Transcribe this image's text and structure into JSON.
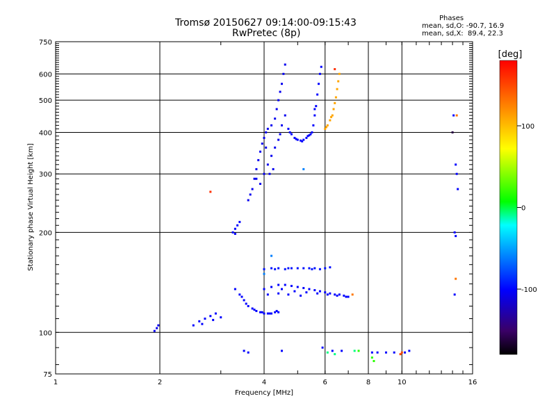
{
  "header": {
    "title_line1": "Tromsø 20150627 09:14:00-09:15:43",
    "title_line2": "RwPretec (8p)"
  },
  "phases": {
    "heading": "Phases",
    "line_o": "mean, sd,O: -90.7, 16.9",
    "line_x": "mean, sd,X:  89.4, 22.3"
  },
  "chart_data": {
    "type": "scatter",
    "xlabel": "Frequency [MHz]",
    "ylabel": "Stationary phase Virtual Height [km]",
    "xscale": "log",
    "yscale": "log",
    "xlim": [
      1,
      16
    ],
    "ylim": [
      75,
      750
    ],
    "xticks": [
      {
        "value": 1,
        "label": "1"
      },
      {
        "value": 2,
        "label": "2"
      },
      {
        "value": 4,
        "label": "4"
      },
      {
        "value": 6,
        "label": "6"
      },
      {
        "value": 8,
        "label": "8"
      },
      {
        "value": 10,
        "label": "10"
      },
      {
        "value": 16,
        "label": "16"
      }
    ],
    "yticks": [
      {
        "value": 75,
        "label": "75"
      },
      {
        "value": 100,
        "label": "100"
      },
      {
        "value": 200,
        "label": "200"
      },
      {
        "value": 300,
        "label": "300"
      },
      {
        "value": 400,
        "label": "400"
      },
      {
        "value": 500,
        "label": "500"
      },
      {
        "value": 600,
        "label": "600"
      },
      {
        "value": 750,
        "label": "750"
      }
    ],
    "grid_x": [
      2,
      4,
      6,
      8,
      10
    ],
    "grid_y": [
      100,
      200,
      300,
      400,
      500,
      600
    ],
    "colorbar": {
      "label": "[deg]",
      "range": [
        -180,
        180
      ],
      "ticks": [
        {
          "value": 100,
          "label": "100"
        },
        {
          "value": 0,
          "label": "0"
        },
        {
          "value": -100,
          "label": "-100"
        }
      ]
    },
    "clusters": [
      {
        "phase": -105,
        "points": [
          [
            1.93,
            101
          ],
          [
            1.96,
            103
          ],
          [
            1.98,
            105
          ]
        ]
      },
      {
        "phase": -100,
        "points": [
          [
            2.5,
            105
          ],
          [
            2.6,
            108
          ],
          [
            2.7,
            110
          ],
          [
            2.8,
            112
          ],
          [
            2.9,
            114
          ],
          [
            3.0,
            111
          ],
          [
            2.65,
            106
          ],
          [
            2.85,
            109
          ]
        ]
      },
      {
        "phase": -100,
        "points": [
          [
            3.25,
            200
          ],
          [
            3.3,
            205
          ],
          [
            3.35,
            210
          ],
          [
            3.3,
            198
          ],
          [
            3.4,
            215
          ]
        ]
      },
      {
        "phase": -105,
        "points": [
          [
            3.6,
            250
          ],
          [
            3.7,
            270
          ],
          [
            3.75,
            290
          ],
          [
            3.8,
            310
          ],
          [
            3.85,
            330
          ],
          [
            3.9,
            350
          ],
          [
            3.95,
            370
          ],
          [
            4.0,
            385
          ],
          [
            4.05,
            400
          ],
          [
            4.1,
            410
          ],
          [
            4.2,
            420
          ],
          [
            4.3,
            440
          ],
          [
            4.35,
            470
          ],
          [
            4.4,
            500
          ],
          [
            4.45,
            530
          ],
          [
            4.5,
            560
          ],
          [
            4.55,
            600
          ],
          [
            4.6,
            640
          ],
          [
            4.0,
            300
          ],
          [
            4.1,
            320
          ],
          [
            4.2,
            340
          ],
          [
            4.3,
            360
          ],
          [
            4.4,
            380
          ],
          [
            4.45,
            395
          ],
          [
            4.5,
            420
          ],
          [
            4.6,
            450
          ],
          [
            3.65,
            260
          ],
          [
            3.9,
            280
          ],
          [
            4.15,
            300
          ],
          [
            4.25,
            310
          ],
          [
            3.8,
            290
          ],
          [
            4.05,
            360
          ]
        ]
      },
      {
        "phase": -100,
        "points": [
          [
            4.7,
            410
          ],
          [
            4.8,
            395
          ],
          [
            4.9,
            385
          ],
          [
            5.0,
            380
          ],
          [
            5.1,
            378
          ],
          [
            5.2,
            380
          ],
          [
            5.3,
            385
          ],
          [
            5.4,
            392
          ],
          [
            5.5,
            400
          ],
          [
            5.55,
            420
          ],
          [
            5.6,
            450
          ],
          [
            5.65,
            480
          ],
          [
            5.7,
            520
          ],
          [
            5.75,
            560
          ],
          [
            5.8,
            600
          ],
          [
            5.85,
            630
          ],
          [
            4.75,
            400
          ],
          [
            4.95,
            382
          ],
          [
            5.15,
            376
          ],
          [
            5.35,
            390
          ],
          [
            5.45,
            395
          ],
          [
            5.6,
            470
          ]
        ]
      },
      {
        "phase": 110,
        "points": [
          [
            6.0,
            410
          ],
          [
            6.1,
            420
          ],
          [
            6.2,
            435
          ],
          [
            6.3,
            450
          ],
          [
            6.35,
            470
          ],
          [
            6.4,
            490
          ],
          [
            6.45,
            510
          ],
          [
            6.5,
            540
          ],
          [
            6.55,
            570
          ],
          [
            6.6,
            600
          ],
          [
            6.05,
            415
          ],
          [
            6.25,
            445
          ]
        ]
      },
      {
        "phase": -100,
        "points": [
          [
            3.3,
            135
          ],
          [
            3.4,
            130
          ],
          [
            3.5,
            125
          ],
          [
            3.6,
            120
          ],
          [
            3.7,
            118
          ],
          [
            3.8,
            116
          ],
          [
            3.9,
            115
          ],
          [
            4.0,
            114
          ],
          [
            4.1,
            114
          ],
          [
            4.2,
            114
          ],
          [
            4.3,
            115
          ],
          [
            4.4,
            115
          ],
          [
            3.45,
            128
          ],
          [
            3.55,
            122
          ],
          [
            3.75,
            117
          ],
          [
            3.95,
            115
          ],
          [
            4.15,
            114
          ],
          [
            4.35,
            116
          ]
        ]
      },
      {
        "phase": -95,
        "points": [
          [
            4.0,
            155
          ],
          [
            4.2,
            156
          ],
          [
            4.4,
            156
          ],
          [
            4.6,
            155
          ],
          [
            4.8,
            156
          ],
          [
            5.0,
            156
          ],
          [
            5.2,
            156
          ],
          [
            5.4,
            156
          ],
          [
            5.6,
            156
          ],
          [
            5.8,
            155
          ],
          [
            6.0,
            156
          ],
          [
            6.2,
            157
          ],
          [
            4.3,
            155
          ],
          [
            4.7,
            156
          ],
          [
            5.5,
            155
          ]
        ]
      },
      {
        "phase": -100,
        "points": [
          [
            4.0,
            135
          ],
          [
            4.2,
            137
          ],
          [
            4.4,
            139
          ],
          [
            4.6,
            139
          ],
          [
            4.8,
            138
          ],
          [
            5.0,
            137
          ],
          [
            5.2,
            136
          ],
          [
            5.4,
            135
          ],
          [
            5.6,
            134
          ],
          [
            5.8,
            133
          ],
          [
            6.0,
            132
          ],
          [
            6.2,
            131
          ],
          [
            6.4,
            130
          ],
          [
            6.6,
            130
          ],
          [
            6.8,
            129
          ],
          [
            7.0,
            128
          ],
          [
            4.5,
            135
          ],
          [
            4.9,
            133
          ],
          [
            5.3,
            132
          ],
          [
            5.7,
            131
          ],
          [
            6.1,
            130
          ],
          [
            6.5,
            129
          ],
          [
            6.9,
            128
          ],
          [
            4.1,
            130
          ],
          [
            4.4,
            131
          ],
          [
            4.7,
            130
          ],
          [
            5.1,
            129
          ]
        ]
      },
      {
        "phase": -100,
        "points": [
          [
            3.5,
            88
          ],
          [
            3.6,
            87
          ],
          [
            4.5,
            88
          ],
          [
            5.9,
            90
          ],
          [
            6.3,
            88
          ],
          [
            6.7,
            88
          ],
          [
            8.2,
            87
          ],
          [
            8.5,
            87
          ],
          [
            9.0,
            87
          ],
          [
            9.5,
            87
          ],
          [
            10.2,
            87
          ],
          [
            10.5,
            88
          ]
        ]
      },
      {
        "phase": 20,
        "points": [
          [
            7.5,
            88
          ],
          [
            8.2,
            84
          ],
          [
            8.3,
            82
          ]
        ]
      },
      {
        "phase": -5,
        "points": [
          [
            6.1,
            87
          ],
          [
            6.4,
            86
          ],
          [
            7.3,
            88
          ]
        ]
      },
      {
        "phase": 150,
        "points": [
          [
            10.0,
            87
          ],
          [
            9.9,
            86
          ]
        ]
      },
      {
        "phase": -100,
        "points": [
          [
            14.3,
            320
          ],
          [
            14.4,
            300
          ],
          [
            14.5,
            270
          ],
          [
            14.2,
            200
          ],
          [
            14.3,
            195
          ],
          [
            14.1,
            450
          ],
          [
            14.2,
            130
          ]
        ]
      },
      {
        "phase": -160,
        "points": [
          [
            14.0,
            400
          ]
        ]
      },
      {
        "phase": 130,
        "points": [
          [
            14.4,
            450
          ],
          [
            14.3,
            145
          ],
          [
            7.2,
            130
          ]
        ]
      },
      {
        "phase": 160,
        "points": [
          [
            6.4,
            620
          ],
          [
            2.8,
            265
          ]
        ]
      },
      {
        "phase": -60,
        "points": [
          [
            5.2,
            310
          ],
          [
            4.2,
            170
          ],
          [
            4.0,
            150
          ]
        ]
      }
    ]
  }
}
